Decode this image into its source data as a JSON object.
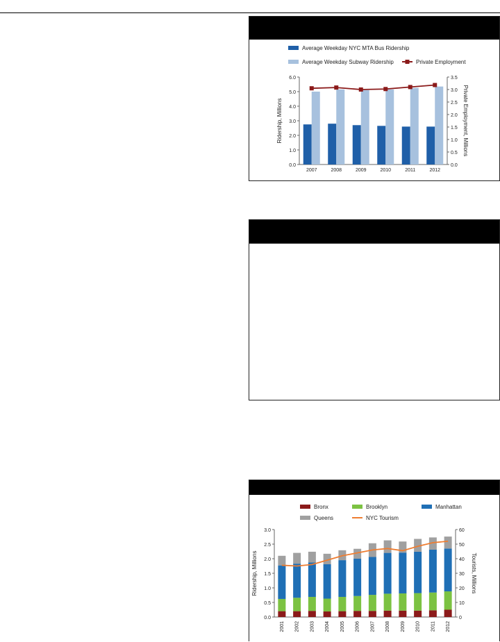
{
  "charts": [
    {
      "chart_data": {
        "type": "bar",
        "categories": [
          "2007",
          "2008",
          "2009",
          "2010",
          "2011",
          "2012"
        ],
        "series": [
          {
            "name": "Average Weekday NYC MTA Bus Ridership",
            "kind": "bar",
            "axis": "left",
            "color": "#1f5fa8",
            "values": [
              2.75,
              2.8,
              2.7,
              2.65,
              2.6,
              2.6
            ]
          },
          {
            "name": "Average Weekday Subway Ridership",
            "kind": "bar",
            "axis": "left",
            "color": "#a7c1de",
            "values": [
              5.0,
              5.15,
              5.1,
              5.15,
              5.25,
              5.35
            ]
          },
          {
            "name": "Private Employment",
            "kind": "line",
            "axis": "right",
            "color": "#8b1a1a",
            "values": [
              3.05,
              3.08,
              3.0,
              3.02,
              3.1,
              3.18
            ]
          }
        ],
        "ylabel": "Ridership, Millions",
        "y2label": "Private Employment, Millions",
        "ylim": [
          0,
          6
        ],
        "yticks": [
          "0.0",
          "1.0",
          "2.0",
          "3.0",
          "4.0",
          "5.0",
          "6.0"
        ],
        "y2lim": [
          0,
          3.5
        ],
        "y2ticks": [
          "0.0",
          "0.5",
          "1.0",
          "1.5",
          "2.0",
          "2.5",
          "3.0",
          "3.5"
        ],
        "legend": "top"
      }
    },
    {
      "chart_data": {
        "type": "bar",
        "categories": [
          "2001",
          "2002",
          "2003",
          "2004",
          "2005",
          "2006",
          "2007",
          "2008",
          "2009",
          "2010",
          "2011",
          "2012"
        ],
        "series": [
          {
            "name": "Bronx",
            "kind": "stack",
            "axis": "left",
            "color": "#8b1a1a",
            "values": [
              0.2,
              0.2,
              0.21,
              0.19,
              0.2,
              0.21,
              0.21,
              0.22,
              0.22,
              0.22,
              0.23,
              0.25
            ]
          },
          {
            "name": "Brooklyn",
            "kind": "stack",
            "axis": "left",
            "color": "#7cc242",
            "values": [
              0.42,
              0.46,
              0.48,
              0.44,
              0.49,
              0.51,
              0.55,
              0.58,
              0.59,
              0.6,
              0.61,
              0.63
            ]
          },
          {
            "name": "Manhattan",
            "kind": "stack",
            "axis": "left",
            "color": "#1f6fb5",
            "values": [
              1.15,
              1.17,
              1.18,
              1.18,
              1.26,
              1.28,
              1.3,
              1.4,
              1.4,
              1.42,
              1.47,
              1.47
            ]
          },
          {
            "name": "Queens",
            "kind": "stack",
            "axis": "left",
            "color": "#a0a0a0",
            "values": [
              0.33,
              0.37,
              0.37,
              0.36,
              0.34,
              0.34,
              0.47,
              0.43,
              0.38,
              0.44,
              0.42,
              0.41
            ]
          },
          {
            "name": "NYC Tourism",
            "kind": "line",
            "axis": "right",
            "color": "#ee7d31",
            "values": [
              35.5,
              35,
              36,
              39,
              42,
              44,
              46,
              47,
              45.5,
              48.5,
              51,
              52
            ]
          }
        ],
        "ylabel": "Ridership, Millions",
        "y2label": "Tourists, Millions",
        "ylim": [
          0,
          3
        ],
        "yticks": [
          "0.0",
          "0.5",
          "1.0",
          "1.5",
          "2.0",
          "2.5",
          "3.0"
        ],
        "y2lim": [
          0,
          60
        ],
        "y2ticks": [
          "0",
          "10",
          "20",
          "30",
          "40",
          "50",
          "60"
        ],
        "legend": "top"
      }
    }
  ]
}
